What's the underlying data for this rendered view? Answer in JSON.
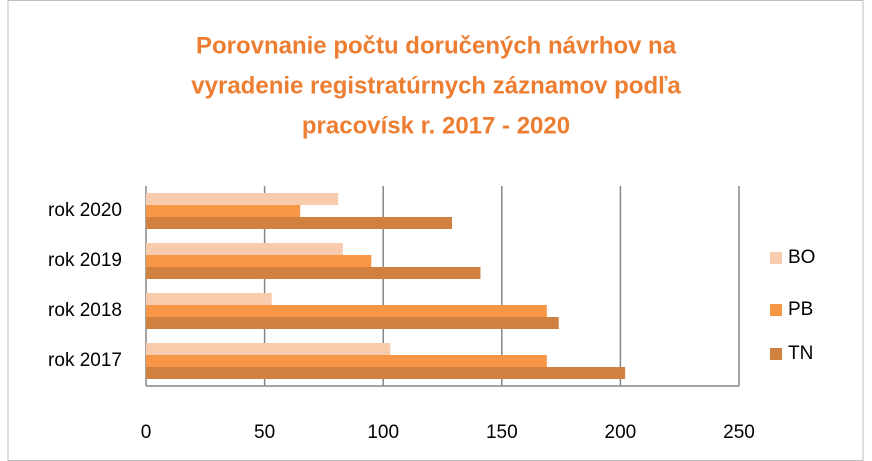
{
  "chart_data": {
    "type": "hbar",
    "title": [
      "Porovnanie počtu doručených návrhov na",
      "vyradenie registratúrnych záznamov podľa",
      "pracovísk r. 2017 - 2020"
    ],
    "categories": [
      "rok 2017",
      "rok 2018",
      "rok 2019",
      "rok 2020"
    ],
    "series": [
      {
        "name": "BO",
        "color": "#F8CBAD",
        "values": [
          103,
          53,
          83,
          81
        ]
      },
      {
        "name": "PB",
        "color": "#F79646",
        "values": [
          169,
          169,
          95,
          65
        ]
      },
      {
        "name": "TN",
        "color": "#D0803F",
        "values": [
          202,
          174,
          141,
          129
        ]
      }
    ],
    "xlim": [
      0,
      250
    ],
    "xticks": [
      0,
      50,
      100,
      150,
      200,
      250
    ],
    "grid": true,
    "legend": "right"
  }
}
